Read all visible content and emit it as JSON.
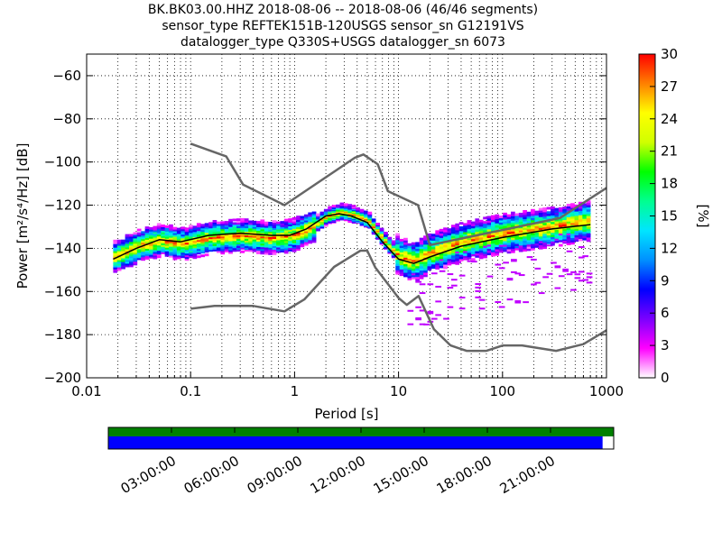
{
  "chart_data": {
    "type": "heatmap",
    "title_lines": [
      "BK.BK03.00.HHZ   2018-08-06 -- 2018-08-06  (46/46 segments)",
      "sensor_type REFTEK151B-120USGS sensor_sn G12191VS",
      "datalogger_type Q330S+USGS datalogger_sn 6073"
    ],
    "xlabel": "Period [s]",
    "ylabel": "Power [m²/s⁴/Hz] [dB]",
    "xscale": "log",
    "xlim": [
      0.01,
      1000
    ],
    "ylim": [
      -200,
      -50
    ],
    "x_ticks": [
      {
        "v": 0.01,
        "label": "0.01"
      },
      {
        "v": 0.1,
        "label": "0.1"
      },
      {
        "v": 1,
        "label": "1"
      },
      {
        "v": 10,
        "label": "10"
      },
      {
        "v": 100,
        "label": "100"
      },
      {
        "v": 1000,
        "label": "1000"
      }
    ],
    "y_ticks": [
      {
        "v": -60,
        "label": "−60"
      },
      {
        "v": -80,
        "label": "−80"
      },
      {
        "v": -100,
        "label": "−100"
      },
      {
        "v": -120,
        "label": "−120"
      },
      {
        "v": -140,
        "label": "−140"
      },
      {
        "v": -160,
        "label": "−160"
      },
      {
        "v": -180,
        "label": "−180"
      },
      {
        "v": -200,
        "label": "−200"
      }
    ],
    "grid": "dotted",
    "colorbar": {
      "label": "[%]",
      "range": [
        0,
        30
      ],
      "ticks": [
        0,
        3,
        6,
        9,
        12,
        15,
        18,
        21,
        24,
        27,
        30
      ],
      "colors": [
        "#ffffff",
        "#ff00ff",
        "#7b00ff",
        "#0000ff",
        "#0090ff",
        "#00e5ff",
        "#00ff90",
        "#00ff00",
        "#d0ff00",
        "#ffff00",
        "#ff8000",
        "#ff0000"
      ]
    },
    "noise_model_high": {
      "x": [
        0.1,
        0.22,
        0.32,
        0.8,
        3.8,
        4.6,
        6.3,
        7.9,
        15.4,
        20,
        354.8,
        1000
      ],
      "y": [
        -91.5,
        -97.4,
        -110.5,
        -120,
        -98,
        -96.5,
        -101,
        -113.5,
        -120,
        -138.5,
        -126,
        -112
      ]
    },
    "noise_model_low": {
      "x": [
        0.1,
        0.17,
        0.4,
        0.8,
        1.24,
        2.4,
        4.3,
        5,
        6,
        10,
        12,
        15.6,
        21.9,
        31.6,
        45,
        70,
        101,
        154,
        328,
        600,
        1000
      ],
      "y": [
        -168,
        -166.7,
        -166.7,
        -169.2,
        -163.7,
        -148.6,
        -141.1,
        -141.1,
        -149,
        -163,
        -166.2,
        -162.1,
        -177.5,
        -185,
        -187.5,
        -187.5,
        -185,
        -185,
        -187.5,
        -184.4,
        -178
      ]
    },
    "mean_curve": {
      "x": [
        0.018,
        0.03,
        0.05,
        0.08,
        0.15,
        0.3,
        0.6,
        0.9,
        1.3,
        2,
        2.7,
        3.5,
        5,
        7,
        10,
        14,
        20,
        40,
        100,
        300,
        700
      ],
      "y": [
        -145,
        -140,
        -136,
        -137,
        -134,
        -133,
        -134,
        -134,
        -131,
        -125,
        -124,
        -125,
        -128,
        -137,
        -145,
        -147,
        -144,
        -139,
        -135,
        -131,
        -129
      ]
    },
    "mode_curve": {
      "x": [
        0.018,
        0.03,
        0.05,
        0.08,
        0.15,
        0.3,
        0.6,
        0.9,
        1.3,
        2,
        2.7,
        3.5,
        5,
        7,
        10,
        14,
        20,
        40,
        100,
        300,
        700
      ],
      "y": [
        -144,
        -139,
        -136,
        -138,
        -135,
        -134,
        -135,
        -134,
        -131,
        -125,
        -123,
        -124,
        -127,
        -136,
        -144,
        -146,
        -142,
        -137,
        -133,
        -130,
        -127
      ]
    },
    "timeline": {
      "labels": [
        "03:00:00",
        "06:00:00",
        "09:00:00",
        "12:00:00",
        "15:00:00",
        "18:00:00",
        "21:00:00"
      ],
      "segment_coverage_fraction": 0.978,
      "data_coverage_fraction": 1.0,
      "colors": {
        "data": "#008000",
        "segments": "#0000ff"
      }
    }
  }
}
